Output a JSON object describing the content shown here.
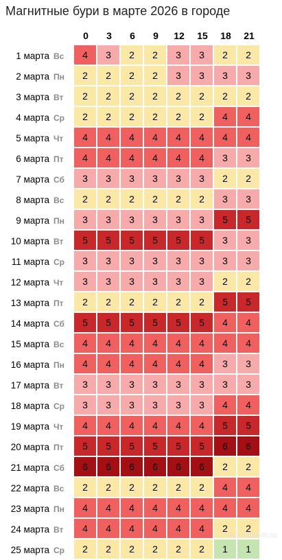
{
  "title": "Магнитные бури в марте 2026 в городе",
  "hours": [
    "0",
    "3",
    "6",
    "9",
    "12",
    "15",
    "18",
    "21"
  ],
  "level_colors": {
    "1": "#c4e5b0",
    "2": "#fbe8a4",
    "3": "#f7aaaa",
    "4": "#f0605e",
    "5": "#c9282a",
    "6": "#a30f12"
  },
  "rows": [
    {
      "date": "1 марта",
      "dow": "Вс",
      "values": [
        4,
        3,
        2,
        2,
        3,
        3,
        2,
        2
      ]
    },
    {
      "date": "2 марта",
      "dow": "Пн",
      "values": [
        2,
        2,
        2,
        2,
        3,
        3,
        3,
        3
      ]
    },
    {
      "date": "3 марта",
      "dow": "Вт",
      "values": [
        2,
        2,
        2,
        2,
        2,
        2,
        2,
        2
      ]
    },
    {
      "date": "4 марта",
      "dow": "Ср",
      "values": [
        2,
        2,
        2,
        2,
        2,
        2,
        4,
        4
      ]
    },
    {
      "date": "5 марта",
      "dow": "Чт",
      "values": [
        4,
        4,
        4,
        4,
        4,
        4,
        4,
        4
      ]
    },
    {
      "date": "6 марта",
      "dow": "Пт",
      "values": [
        4,
        4,
        4,
        4,
        4,
        4,
        3,
        3
      ]
    },
    {
      "date": "7 марта",
      "dow": "Сб",
      "values": [
        3,
        3,
        3,
        3,
        3,
        3,
        2,
        2
      ]
    },
    {
      "date": "8 марта",
      "dow": "Вс",
      "values": [
        2,
        2,
        2,
        2,
        2,
        2,
        3,
        3
      ]
    },
    {
      "date": "9 марта",
      "dow": "Пн",
      "values": [
        3,
        3,
        3,
        3,
        3,
        3,
        5,
        5
      ]
    },
    {
      "date": "10 марта",
      "dow": "Вт",
      "values": [
        5,
        5,
        5,
        5,
        5,
        5,
        3,
        3
      ]
    },
    {
      "date": "11 марта",
      "dow": "Ср",
      "values": [
        3,
        3,
        3,
        3,
        3,
        3,
        3,
        3
      ]
    },
    {
      "date": "12 марта",
      "dow": "Чт",
      "values": [
        3,
        3,
        3,
        3,
        3,
        3,
        2,
        2
      ]
    },
    {
      "date": "13 марта",
      "dow": "Пт",
      "values": [
        2,
        2,
        2,
        2,
        2,
        2,
        5,
        5
      ]
    },
    {
      "date": "14 марта",
      "dow": "Сб",
      "values": [
        5,
        5,
        5,
        5,
        5,
        5,
        4,
        4
      ]
    },
    {
      "date": "15 марта",
      "dow": "Вс",
      "values": [
        4,
        4,
        4,
        4,
        4,
        4,
        4,
        4
      ]
    },
    {
      "date": "16 марта",
      "dow": "Пн",
      "values": [
        4,
        4,
        4,
        4,
        4,
        4,
        3,
        3
      ]
    },
    {
      "date": "17 марта",
      "dow": "Вт",
      "values": [
        3,
        3,
        3,
        3,
        3,
        3,
        3,
        3
      ]
    },
    {
      "date": "18 марта",
      "dow": "Ср",
      "values": [
        3,
        3,
        3,
        3,
        3,
        3,
        4,
        4
      ]
    },
    {
      "date": "19 марта",
      "dow": "Чт",
      "values": [
        4,
        4,
        4,
        4,
        4,
        4,
        5,
        5
      ]
    },
    {
      "date": "20 марта",
      "dow": "Пт",
      "values": [
        5,
        5,
        5,
        5,
        5,
        5,
        6,
        6
      ]
    },
    {
      "date": "21 марта",
      "dow": "Сб",
      "values": [
        6,
        6,
        6,
        6,
        6,
        6,
        2,
        2
      ]
    },
    {
      "date": "22 марта",
      "dow": "Вс",
      "values": [
        2,
        2,
        2,
        2,
        2,
        2,
        4,
        4
      ]
    },
    {
      "date": "23 марта",
      "dow": "Пн",
      "values": [
        4,
        4,
        4,
        4,
        4,
        4,
        4,
        4
      ]
    },
    {
      "date": "24 марта",
      "dow": "Вт",
      "values": [
        4,
        4,
        4,
        4,
        4,
        4,
        2,
        2
      ]
    },
    {
      "date": "25 марта",
      "dow": "Ср",
      "values": [
        2,
        2,
        2,
        2,
        2,
        2,
        1,
        1
      ]
    }
  ],
  "watermark": "сайт/time-m.ru"
}
